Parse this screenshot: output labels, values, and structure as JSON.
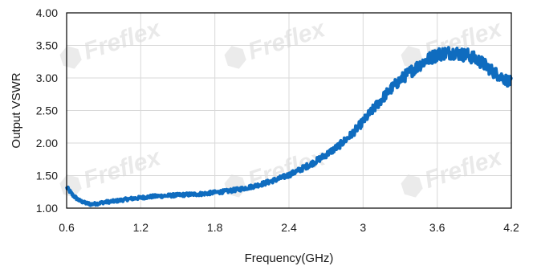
{
  "watermark": {
    "text": "Freflex"
  },
  "chart_data": {
    "type": "line",
    "xlabel": "Frequency(GHz)",
    "ylabel": "Output VSWR",
    "xlim": [
      0.6,
      4.2
    ],
    "ylim": [
      1.0,
      4.0
    ],
    "x_ticks": [
      "0.6",
      "1.2",
      "1.8",
      "2.4",
      "3",
      "3.6",
      "4.2"
    ],
    "y_ticks": [
      "1.00",
      "1.50",
      "2.00",
      "2.50",
      "3.00",
      "3.50",
      "4.00"
    ],
    "grid": true,
    "legend": "none",
    "series": [
      {
        "color": "#0f6cbf",
        "x": [
          0.6,
          0.65,
          0.7,
          0.75,
          0.8,
          0.85,
          0.9,
          1.0,
          1.1,
          1.2,
          1.3,
          1.4,
          1.5,
          1.6,
          1.7,
          1.8,
          1.9,
          2.0,
          2.1,
          2.2,
          2.3,
          2.4,
          2.5,
          2.6,
          2.7,
          2.8,
          2.9,
          3.0,
          3.1,
          3.2,
          3.3,
          3.4,
          3.5,
          3.6,
          3.65,
          3.7,
          3.75,
          3.8,
          3.85,
          3.9,
          3.95,
          4.0,
          4.05,
          4.1,
          4.15,
          4.2
        ],
        "y": [
          1.32,
          1.2,
          1.12,
          1.08,
          1.06,
          1.07,
          1.09,
          1.11,
          1.14,
          1.16,
          1.18,
          1.19,
          1.2,
          1.21,
          1.22,
          1.24,
          1.26,
          1.29,
          1.33,
          1.38,
          1.44,
          1.51,
          1.6,
          1.7,
          1.82,
          1.95,
          2.12,
          2.33,
          2.56,
          2.78,
          2.97,
          3.12,
          3.26,
          3.36,
          3.38,
          3.39,
          3.39,
          3.36,
          3.35,
          3.3,
          3.25,
          3.18,
          3.1,
          3.04,
          2.98,
          2.93
        ]
      }
    ]
  }
}
